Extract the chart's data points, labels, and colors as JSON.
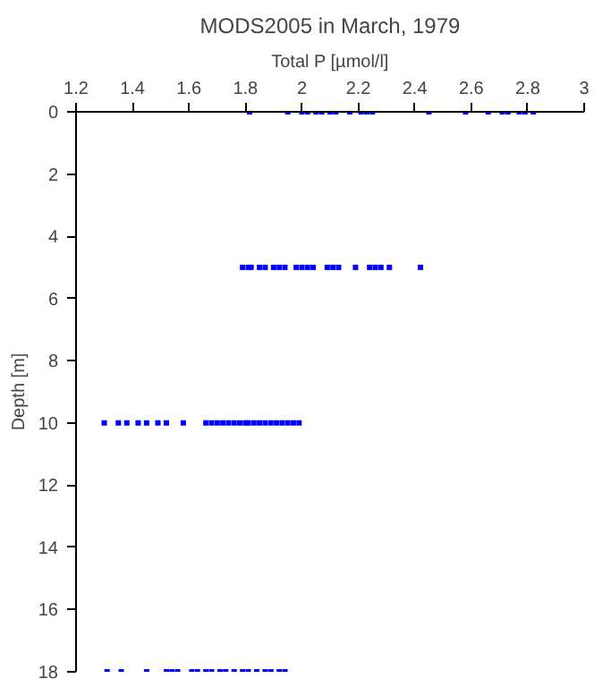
{
  "chart_data": {
    "type": "scatter",
    "title": "MODS2005 in March, 1979",
    "xlabel": "Total P [µmol/l]",
    "ylabel": "Depth [m]",
    "xlim": [
      1.2,
      3
    ],
    "xticks": [
      1.2,
      1.4,
      1.6,
      1.8,
      2,
      2.2,
      2.4,
      2.6,
      2.8,
      3
    ],
    "ylim": [
      18,
      0
    ],
    "yticks": [
      0,
      2,
      4,
      6,
      8,
      10,
      12,
      14,
      16,
      18
    ],
    "grid": false,
    "marker": "square",
    "series": [
      {
        "color": "#0000ff",
        "x": [
          1.815,
          1.95,
          2.0,
          2.02,
          2.05,
          2.07,
          2.1,
          2.12,
          2.17,
          2.21,
          2.23,
          2.25,
          2.45,
          2.58,
          2.66,
          2.71,
          2.73,
          2.77,
          2.79,
          2.82,
          1.79,
          1.81,
          1.82,
          1.85,
          1.87,
          1.9,
          1.92,
          1.94,
          1.98,
          2.0,
          2.02,
          2.04,
          2.09,
          2.11,
          2.13,
          2.19,
          2.24,
          2.26,
          2.28,
          2.31,
          2.42,
          1.3,
          1.35,
          1.38,
          1.42,
          1.45,
          1.49,
          1.52,
          1.58,
          1.66,
          1.68,
          1.7,
          1.72,
          1.74,
          1.76,
          1.78,
          1.8,
          1.81,
          1.83,
          1.85,
          1.87,
          1.89,
          1.91,
          1.93,
          1.95,
          1.97,
          1.99,
          1.31,
          1.36,
          1.45,
          1.52,
          1.54,
          1.56,
          1.61,
          1.63,
          1.66,
          1.68,
          1.71,
          1.73,
          1.76,
          1.79,
          1.81,
          1.84,
          1.87,
          1.89,
          1.92,
          1.94
        ],
        "values": [
          0,
          0,
          0,
          0,
          0,
          0,
          0,
          0,
          0,
          0,
          0,
          0,
          0,
          0,
          0,
          0,
          0,
          0,
          0,
          0,
          5,
          5,
          5,
          5,
          5,
          5,
          5,
          5,
          5,
          5,
          5,
          5,
          5,
          5,
          5,
          5,
          5,
          5,
          5,
          5,
          5,
          10,
          10,
          10,
          10,
          10,
          10,
          10,
          10,
          10,
          10,
          10,
          10,
          10,
          10,
          10,
          10,
          10,
          10,
          10,
          10,
          10,
          10,
          10,
          10,
          10,
          10,
          18,
          18,
          18,
          18,
          18,
          18,
          18,
          18,
          18,
          18,
          18,
          18,
          18,
          18,
          18,
          18,
          18,
          18,
          18,
          18
        ]
      }
    ]
  }
}
